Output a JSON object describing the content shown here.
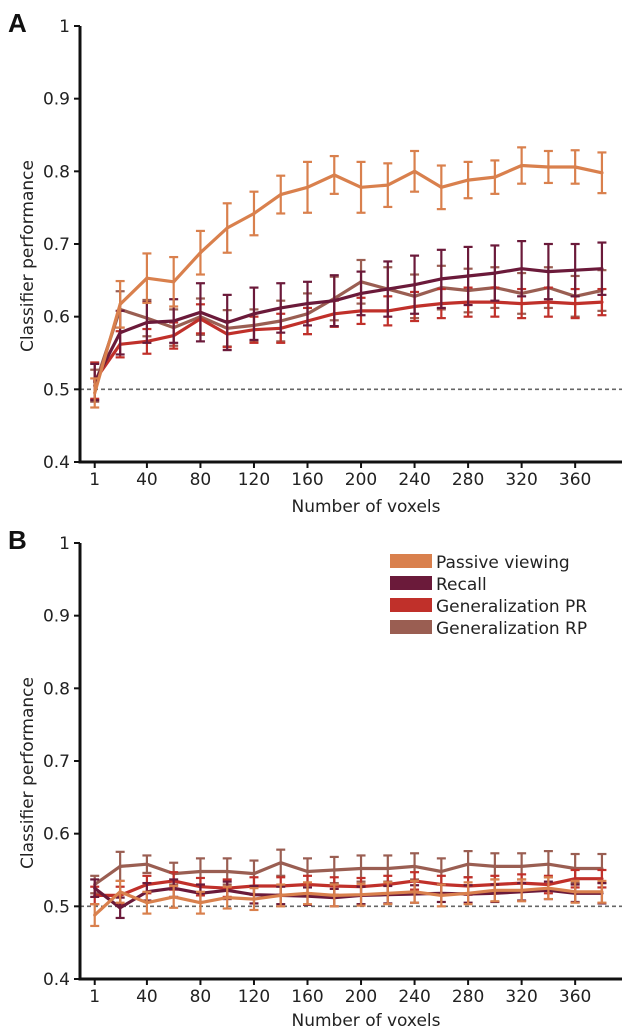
{
  "chart_data": [
    {
      "panel": "A",
      "type": "line",
      "xlabel": "Number of voxels",
      "ylabel": "Classifier performance",
      "ylim": [
        0.4,
        1.0
      ],
      "xlim": [
        -10,
        395
      ],
      "y_ticks": [
        "0.4",
        "0.5",
        "0.6",
        "0.7",
        "0.8",
        "0.9",
        "1"
      ],
      "x_ticks": [
        1,
        40,
        80,
        120,
        160,
        200,
        240,
        280,
        320,
        360
      ],
      "reference_line": 0.5,
      "grid": false,
      "legend": null,
      "x": [
        1,
        20,
        40,
        60,
        80,
        100,
        120,
        140,
        160,
        180,
        200,
        220,
        240,
        260,
        280,
        300,
        320,
        340,
        360,
        380
      ],
      "series": [
        {
          "name": "Passive viewing",
          "color": "#d9804d",
          "values": [
            0.495,
            0.617,
            0.653,
            0.648,
            0.688,
            0.722,
            0.742,
            0.768,
            0.778,
            0.795,
            0.778,
            0.781,
            0.8,
            0.778,
            0.788,
            0.792,
            0.808,
            0.806,
            0.806,
            0.798
          ],
          "errors": [
            0.02,
            0.032,
            0.034,
            0.034,
            0.03,
            0.034,
            0.03,
            0.026,
            0.035,
            0.026,
            0.035,
            0.03,
            0.028,
            0.03,
            0.025,
            0.023,
            0.025,
            0.022,
            0.023,
            0.028
          ]
        },
        {
          "name": "Recall",
          "color": "#6b1a3a",
          "values": [
            0.51,
            0.578,
            0.592,
            0.594,
            0.606,
            0.592,
            0.604,
            0.612,
            0.618,
            0.622,
            0.632,
            0.638,
            0.644,
            0.652,
            0.656,
            0.66,
            0.666,
            0.662,
            0.664,
            0.666
          ],
          "errors": [
            0.025,
            0.03,
            0.028,
            0.03,
            0.04,
            0.038,
            0.036,
            0.034,
            0.03,
            0.035,
            0.03,
            0.038,
            0.04,
            0.04,
            0.04,
            0.038,
            0.038,
            0.038,
            0.036,
            0.036
          ]
        },
        {
          "name": "Generalization PR",
          "color": "#c0302a",
          "values": [
            0.512,
            0.562,
            0.566,
            0.574,
            0.597,
            0.576,
            0.582,
            0.584,
            0.594,
            0.604,
            0.608,
            0.608,
            0.614,
            0.618,
            0.62,
            0.62,
            0.618,
            0.62,
            0.618,
            0.62
          ],
          "errors": [
            0.025,
            0.018,
            0.017,
            0.018,
            0.02,
            0.018,
            0.018,
            0.02,
            0.018,
            0.018,
            0.018,
            0.02,
            0.02,
            0.02,
            0.02,
            0.02,
            0.02,
            0.02,
            0.02,
            0.018
          ]
        },
        {
          "name": "Generalization RP",
          "color": "#9a5e52",
          "values": [
            0.505,
            0.61,
            0.598,
            0.585,
            0.6,
            0.584,
            0.588,
            0.594,
            0.604,
            0.625,
            0.648,
            0.638,
            0.628,
            0.64,
            0.636,
            0.64,
            0.632,
            0.64,
            0.628,
            0.636
          ],
          "errors": [
            0.022,
            0.025,
            0.025,
            0.025,
            0.025,
            0.025,
            0.022,
            0.028,
            0.028,
            0.03,
            0.03,
            0.03,
            0.03,
            0.03,
            0.03,
            0.028,
            0.028,
            0.028,
            0.028,
            0.028
          ]
        }
      ]
    },
    {
      "panel": "B",
      "type": "line",
      "xlabel": "Number of voxels",
      "ylabel": "Classifier performance",
      "ylim": [
        0.4,
        1.0
      ],
      "xlim": [
        -10,
        395
      ],
      "y_ticks": [
        "0.4",
        "0.5",
        "0.6",
        "0.7",
        "0.8",
        "0.9",
        "1"
      ],
      "x_ticks": [
        1,
        40,
        80,
        120,
        160,
        200,
        240,
        280,
        320,
        360
      ],
      "reference_line": 0.5,
      "grid": false,
      "legend": "top-right",
      "x": [
        1,
        20,
        40,
        60,
        80,
        100,
        120,
        140,
        160,
        180,
        200,
        220,
        240,
        260,
        280,
        300,
        320,
        340,
        360,
        380
      ],
      "series": [
        {
          "name": "Passive viewing",
          "color": "#d9804d",
          "values": [
            0.488,
            0.52,
            0.505,
            0.513,
            0.505,
            0.512,
            0.51,
            0.515,
            0.518,
            0.515,
            0.516,
            0.518,
            0.52,
            0.515,
            0.518,
            0.522,
            0.522,
            0.525,
            0.52,
            0.52
          ],
          "errors": [
            0.015,
            0.015,
            0.015,
            0.015,
            0.015,
            0.015,
            0.015,
            0.015,
            0.015,
            0.015,
            0.015,
            0.015,
            0.015,
            0.015,
            0.015,
            0.015,
            0.015,
            0.015,
            0.015,
            0.015
          ]
        },
        {
          "name": "Recall",
          "color": "#6b1a3a",
          "values": [
            0.525,
            0.498,
            0.52,
            0.525,
            0.518,
            0.522,
            0.516,
            0.515,
            0.514,
            0.512,
            0.515,
            0.516,
            0.517,
            0.518,
            0.517,
            0.518,
            0.52,
            0.522,
            0.518,
            0.518
          ],
          "errors": [
            0.012,
            0.014,
            0.012,
            0.012,
            0.012,
            0.012,
            0.012,
            0.012,
            0.012,
            0.012,
            0.012,
            0.012,
            0.012,
            0.012,
            0.012,
            0.012,
            0.012,
            0.012,
            0.012,
            0.014
          ]
        },
        {
          "name": "Generalization PR",
          "color": "#c0302a",
          "values": [
            0.515,
            0.515,
            0.53,
            0.535,
            0.527,
            0.525,
            0.528,
            0.528,
            0.53,
            0.528,
            0.527,
            0.53,
            0.535,
            0.53,
            0.528,
            0.53,
            0.532,
            0.53,
            0.538,
            0.538
          ],
          "errors": [
            0.012,
            0.012,
            0.012,
            0.012,
            0.012,
            0.012,
            0.012,
            0.012,
            0.012,
            0.012,
            0.012,
            0.012,
            0.012,
            0.012,
            0.012,
            0.012,
            0.012,
            0.012,
            0.012,
            0.012
          ]
        },
        {
          "name": "Generalization RP",
          "color": "#9a5e52",
          "values": [
            0.53,
            0.555,
            0.558,
            0.545,
            0.548,
            0.548,
            0.545,
            0.56,
            0.548,
            0.55,
            0.552,
            0.552,
            0.555,
            0.548,
            0.558,
            0.555,
            0.555,
            0.558,
            0.552,
            0.552
          ],
          "errors": [
            0.012,
            0.02,
            0.012,
            0.015,
            0.018,
            0.018,
            0.018,
            0.018,
            0.018,
            0.018,
            0.018,
            0.018,
            0.018,
            0.018,
            0.018,
            0.018,
            0.018,
            0.018,
            0.02,
            0.02
          ]
        }
      ]
    }
  ],
  "legend_entries": [
    "Passive viewing",
    "Recall",
    "Generalization PR",
    "Generalization RP"
  ],
  "colors": {
    "passive_viewing": "#d9804d",
    "recall": "#6b1a3a",
    "generalization_pr": "#c0302a",
    "generalization_rp": "#9a5e52",
    "axis": "#111111",
    "reference_line": "#666666"
  }
}
